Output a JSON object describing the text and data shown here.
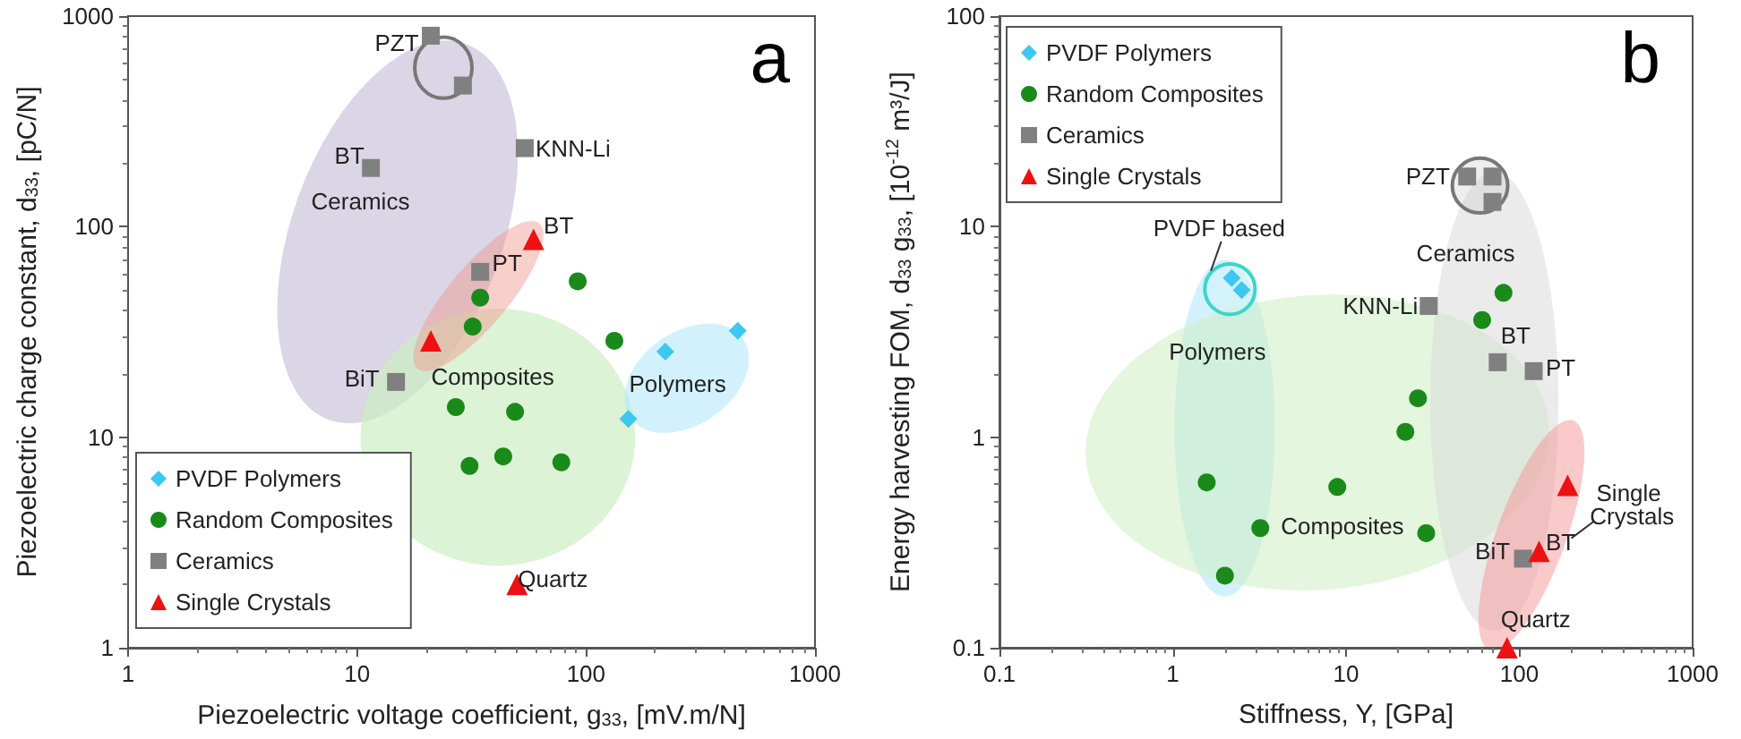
{
  "chart_data": [
    {
      "type": "scatter",
      "title": "a",
      "xlabel": "Piezoelectric voltage coefficient, g$_{33}$, [mV.m/N]",
      "ylabel": "Piezoelectric charge constant, d$_{33}$, [pC/N]",
      "log": "xy",
      "xlim": [
        1,
        1000
      ],
      "ylim": [
        1,
        1000
      ],
      "xticks": [
        1,
        10,
        100,
        1000
      ],
      "yticks": [
        1,
        10,
        100,
        1000
      ],
      "legend": "bottom left",
      "series": [
        {
          "name": "PVDF Polymers",
          "color": "#3cc8f0",
          "marker": "diamond",
          "x": [
            460,
            222,
            153
          ],
          "values": [
            32,
            25.5,
            12.2
          ]
        },
        {
          "name": "Random Composites",
          "color": "#1a8a1a",
          "marker": "circle",
          "x": [
            34.5,
            32,
            92,
            133,
            27,
            49,
            31,
            43.5,
            78
          ],
          "values": [
            46,
            33.5,
            55,
            28.7,
            13.9,
            13.2,
            7.3,
            8.1,
            7.6
          ]
        },
        {
          "name": "Ceramics",
          "color": "#808080",
          "marker": "square",
          "x": [
            21,
            29,
            11.5,
            54,
            34.5,
            14.8
          ],
          "values": [
            807,
            468,
            190,
            236,
            61,
            18.3
          ]
        },
        {
          "name": "Single Crystals",
          "color": "#ee1111",
          "marker": "triangle",
          "x": [
            59,
            21,
            50
          ],
          "values": [
            87,
            28.7,
            2
          ]
        }
      ],
      "annotations": [
        {
          "text": "PZT",
          "x": 21,
          "y": 807
        },
        {
          "text": "BT",
          "x": 11.5,
          "y": 190
        },
        "Ceramics",
        {
          "text": "KNN-Li",
          "x": 54,
          "y": 236
        },
        {
          "text": "BT",
          "x": 59,
          "y": 87
        },
        {
          "text": "PT",
          "x": 34.5,
          "y": 61
        },
        {
          "text": "BiT",
          "x": 14.8,
          "y": 18.3
        },
        "Composites",
        "Polymers",
        {
          "text": "Quartz",
          "x": 50,
          "y": 2
        }
      ]
    },
    {
      "type": "scatter",
      "title": "b",
      "xlabel": "Stiffness, Y, [GPa]",
      "ylabel": "Energy harvesting FOM, d$_{33}$ g$_{33}$, [10$^{-12}$ m³/J]",
      "log": "xy",
      "xlim": [
        0.1,
        1000
      ],
      "ylim": [
        0.1,
        100
      ],
      "xticks": [
        0.1,
        1,
        10,
        100,
        1000
      ],
      "yticks": [
        0.1,
        1,
        10,
        100
      ],
      "legend": "top left",
      "series": [
        {
          "name": "PVDF Polymers",
          "color": "#3cc8f0",
          "marker": "diamond",
          "x": [
            2.19,
            2.5
          ],
          "values": [
            5.7,
            5.0
          ]
        },
        {
          "name": "Random Composites",
          "color": "#1a8a1a",
          "marker": "circle",
          "x": [
            81,
            61,
            26,
            22,
            1.57,
            8.9,
            3.2,
            29,
            2.0
          ],
          "values": [
            4.85,
            3.6,
            1.53,
            1.06,
            0.61,
            0.58,
            0.37,
            0.35,
            0.22
          ]
        },
        {
          "name": "Ceramics",
          "color": "#808080",
          "marker": "square",
          "x": [
            50,
            70,
            70,
            30,
            75,
            121,
            105
          ],
          "values": [
            17.3,
            17.3,
            13.1,
            4.2,
            2.27,
            2.06,
            0.265
          ]
        },
        {
          "name": "Single Crystals",
          "color": "#ee1111",
          "marker": "triangle",
          "x": [
            190,
            130,
            85
          ],
          "values": [
            0.59,
            0.287,
            0.1
          ]
        }
      ],
      "annotations": [
        "PVDF based",
        "Polymers",
        {
          "text": "PZT",
          "x": 50,
          "y": 17.3
        },
        "Ceramics",
        {
          "text": "KNN-Li",
          "x": 30,
          "y": 4.2
        },
        {
          "text": "BT",
          "x": 75,
          "y": 2.27
        },
        {
          "text": "PT",
          "x": 121,
          "y": 2.06
        },
        "Composites",
        "Single Crystals",
        {
          "text": "BiT",
          "x": 105,
          "y": 0.265
        },
        {
          "text": "BT",
          "x": 130,
          "y": 0.287
        },
        {
          "text": "Quartz",
          "x": 85,
          "y": 0.1
        }
      ]
    }
  ]
}
